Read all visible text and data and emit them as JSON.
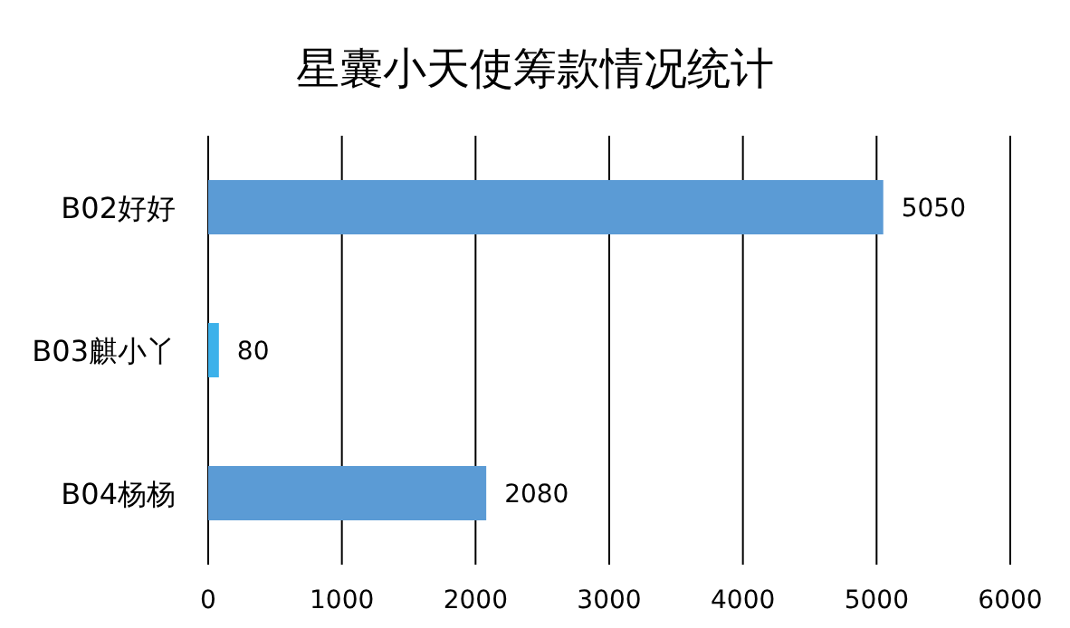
{
  "chart_data": {
    "type": "bar",
    "orientation": "horizontal",
    "title": "星囊小天使筹款情况统计",
    "categories": [
      "B02好好",
      "B03麒小丫",
      "B04杨杨"
    ],
    "values": [
      5050,
      80,
      2080
    ],
    "colors": [
      "#5b9bd5",
      "#3cb1ea",
      "#5b9bd5"
    ],
    "xlim": [
      0,
      6000
    ],
    "xticks": [
      0,
      1000,
      2000,
      3000,
      4000,
      5000,
      6000
    ],
    "grid": "x",
    "data_labels": true
  }
}
